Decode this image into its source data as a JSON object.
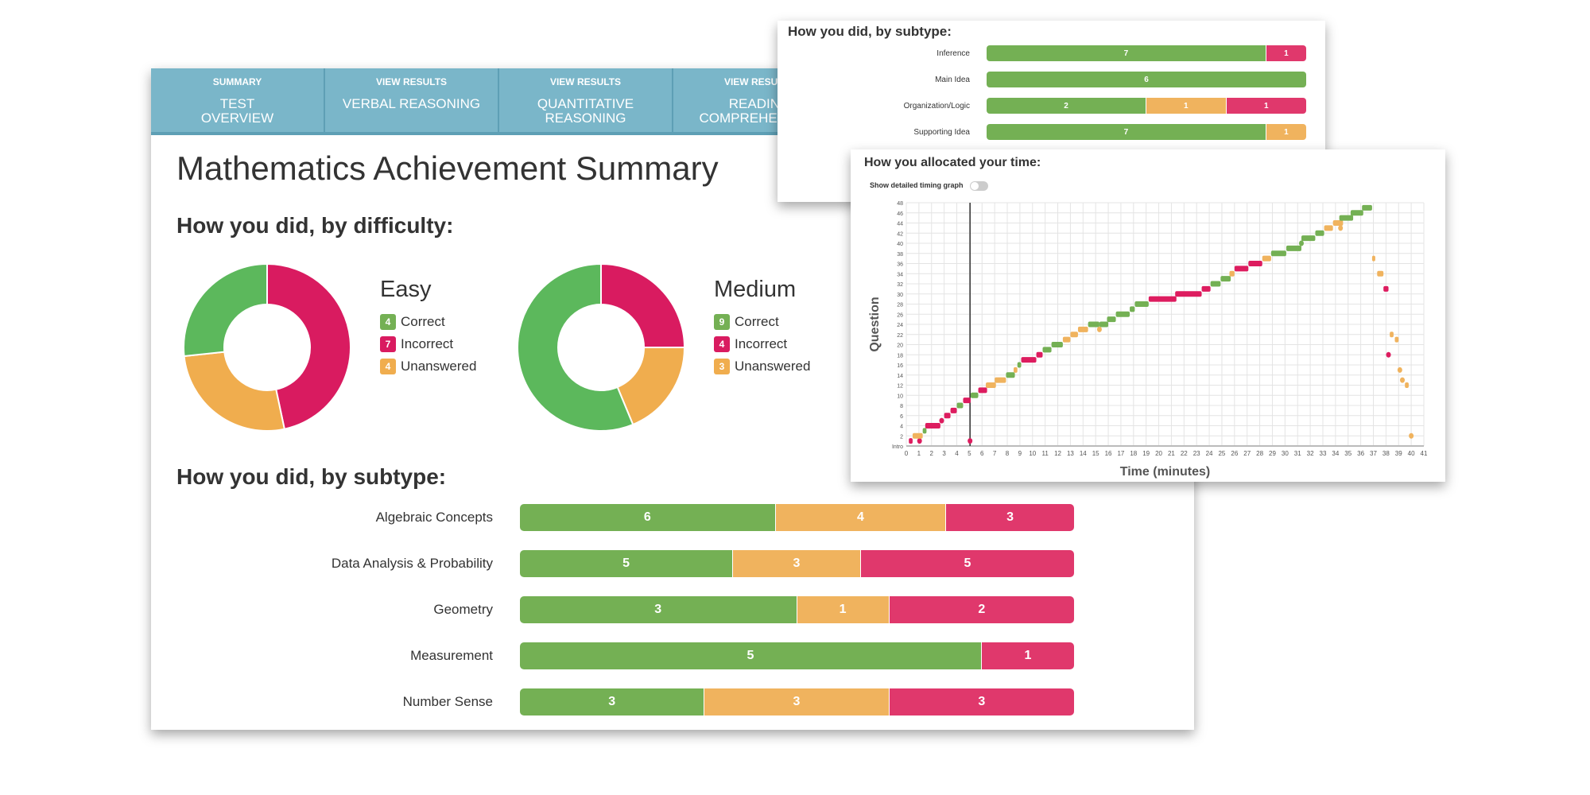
{
  "colors": {
    "correct": "#74b054",
    "incorrect": "#e0386c",
    "unanswered": "#f0b35e",
    "donut_correct": "#5cb85c",
    "donut_incorrect": "#d91b60",
    "donut_unanswered": "#f0ad4e",
    "tab_bg": "#7ab6c9"
  },
  "tabs": [
    {
      "small": "SUMMARY",
      "label": "TEST\nOVERVIEW"
    },
    {
      "small": "VIEW RESULTS",
      "label": "VERBAL REASONING"
    },
    {
      "small": "VIEW RESULTS",
      "label": "QUANTITATIVE\nREASONING"
    },
    {
      "small": "VIEW RESULTS",
      "label": "READING\nCOMPREHENSION"
    }
  ],
  "main": {
    "title": "Mathematics Achievement Summary",
    "difficulty_heading": "How you did, by difficulty:",
    "subtype_heading": "How you did, by subtype:"
  },
  "legend_labels": {
    "correct": "Correct",
    "incorrect": "Incorrect",
    "unanswered": "Unanswered"
  },
  "chart_data": [
    {
      "type": "pie",
      "title": "Easy",
      "categories": [
        "Correct",
        "Incorrect",
        "Unanswered"
      ],
      "values": [
        4,
        7,
        4
      ]
    },
    {
      "type": "pie",
      "title": "Medium",
      "categories": [
        "Correct",
        "Incorrect",
        "Unanswered"
      ],
      "values": [
        9,
        4,
        3
      ]
    },
    {
      "type": "bar",
      "title": "How you did, by subtype:",
      "stacked": true,
      "categories": [
        "Algebraic Concepts",
        "Data Analysis & Probability",
        "Geometry",
        "Measurement",
        "Number Sense"
      ],
      "series": [
        {
          "name": "Correct",
          "values": [
            6,
            5,
            3,
            5,
            3
          ]
        },
        {
          "name": "Unanswered",
          "values": [
            4,
            3,
            1,
            0,
            3
          ]
        },
        {
          "name": "Incorrect",
          "values": [
            3,
            5,
            2,
            1,
            3
          ]
        }
      ]
    },
    {
      "type": "bar",
      "title": "How you did, by subtype:",
      "stacked": true,
      "categories": [
        "Inference",
        "Main Idea",
        "Organization/Logic",
        "Supporting Idea"
      ],
      "series": [
        {
          "name": "Correct",
          "values": [
            7,
            6,
            2,
            7
          ]
        },
        {
          "name": "Unanswered",
          "values": [
            0,
            0,
            1,
            1
          ]
        },
        {
          "name": "Incorrect",
          "values": [
            1,
            0,
            1,
            0
          ]
        }
      ]
    },
    {
      "type": "scatter",
      "title": "How you allocated your time:",
      "toggle_label": "Show detailed timing graph",
      "xlabel": "Time (minutes)",
      "ylabel": "Question",
      "xlim": [
        0,
        41
      ],
      "ylim": [
        0,
        48
      ],
      "y_zero_label": "Intro",
      "marker_minute": 5.05,
      "segments": [
        [
          1,
          0.2,
          0.5,
          "i"
        ],
        [
          1,
          1.05,
          1.05,
          "i"
        ],
        [
          1,
          5.05,
          5.05,
          "i"
        ],
        [
          2,
          0.5,
          1.3,
          "u"
        ],
        [
          3,
          1.3,
          1.6,
          "c"
        ],
        [
          4,
          1.5,
          2.7,
          "i"
        ],
        [
          5,
          2.8,
          2.8,
          "i"
        ],
        [
          6,
          3.0,
          3.5,
          "i"
        ],
        [
          7,
          3.5,
          4.0,
          "i"
        ],
        [
          8,
          4.0,
          4.5,
          "c"
        ],
        [
          9,
          4.5,
          5.1,
          "i"
        ],
        [
          10,
          5.1,
          5.7,
          "c"
        ],
        [
          11,
          5.7,
          6.4,
          "i"
        ],
        [
          12,
          6.3,
          7.1,
          "u"
        ],
        [
          13,
          7.0,
          7.9,
          "u"
        ],
        [
          14,
          7.9,
          8.6,
          "c"
        ],
        [
          15,
          8.5,
          8.8,
          "u"
        ],
        [
          16,
          8.8,
          9.1,
          "c"
        ],
        [
          17,
          9.1,
          10.3,
          "i"
        ],
        [
          18,
          10.3,
          10.8,
          "i"
        ],
        [
          19,
          10.8,
          11.5,
          "c"
        ],
        [
          20,
          11.5,
          12.4,
          "c"
        ],
        [
          21,
          12.4,
          13.0,
          "u"
        ],
        [
          22,
          13.0,
          13.6,
          "u"
        ],
        [
          23,
          13.6,
          14.4,
          "u"
        ],
        [
          24,
          14.4,
          15.3,
          "c"
        ],
        [
          24,
          15.3,
          16.0,
          "c"
        ],
        [
          23,
          15.3,
          15.3,
          "u"
        ],
        [
          25,
          15.9,
          16.6,
          "c"
        ],
        [
          26,
          16.6,
          17.7,
          "c"
        ],
        [
          27,
          17.7,
          18.1,
          "c"
        ],
        [
          28,
          18.1,
          19.2,
          "c"
        ],
        [
          29,
          19.2,
          21.4,
          "i"
        ],
        [
          30,
          21.3,
          23.4,
          "i"
        ],
        [
          31,
          23.4,
          24.1,
          "i"
        ],
        [
          32,
          24.1,
          24.9,
          "c"
        ],
        [
          33,
          24.9,
          25.7,
          "c"
        ],
        [
          34,
          25.6,
          26.0,
          "u"
        ],
        [
          35,
          26.0,
          27.1,
          "i"
        ],
        [
          36,
          27.1,
          28.2,
          "i"
        ],
        [
          37,
          28.2,
          28.9,
          "u"
        ],
        [
          38,
          28.9,
          30.1,
          "c"
        ],
        [
          39,
          30.1,
          31.3,
          "c"
        ],
        [
          40,
          31.3,
          31.3,
          "c"
        ],
        [
          41,
          31.3,
          32.4,
          "c"
        ],
        [
          42,
          32.4,
          33.1,
          "c"
        ],
        [
          43,
          33.1,
          33.8,
          "u"
        ],
        [
          44,
          33.8,
          34.6,
          "u"
        ],
        [
          43,
          34.4,
          34.4,
          "u"
        ],
        [
          45,
          34.3,
          35.4,
          "c"
        ],
        [
          46,
          35.2,
          36.2,
          "c"
        ],
        [
          47,
          36.1,
          36.9,
          "c"
        ],
        [
          37,
          36.9,
          37.1,
          "u"
        ],
        [
          34,
          37.3,
          37.8,
          "u"
        ],
        [
          31,
          37.8,
          38.2,
          "i"
        ],
        [
          22,
          38.3,
          38.6,
          "u"
        ],
        [
          21,
          38.7,
          39.0,
          "u"
        ],
        [
          18,
          38.2,
          38.2,
          "i"
        ],
        [
          15,
          39.1,
          39.1,
          "u"
        ],
        [
          13,
          39.3,
          39.3,
          "u"
        ],
        [
          12,
          39.5,
          39.8,
          "u"
        ],
        [
          2,
          40.0,
          40.0,
          "u"
        ]
      ]
    }
  ],
  "timing": {
    "heading": "How you allocated your time:",
    "toggle_label": "Show detailed timing graph",
    "xlabel": "Time (minutes)",
    "ylabel": "Question",
    "intro": "Intro"
  }
}
